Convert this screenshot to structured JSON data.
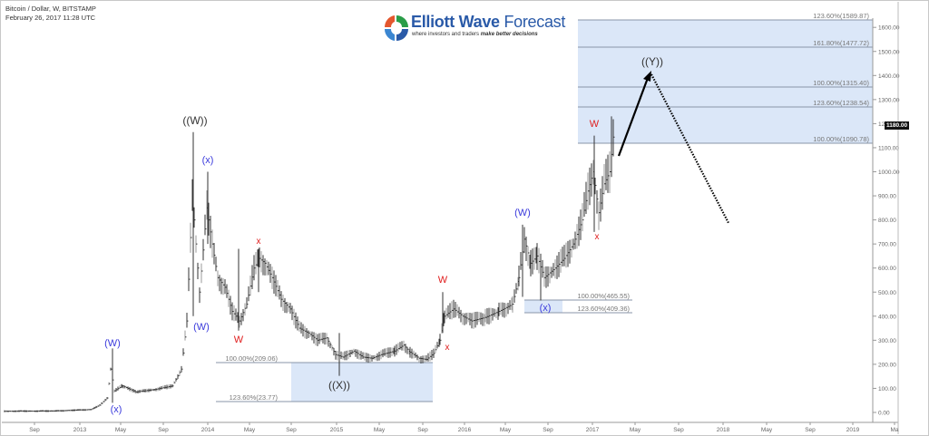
{
  "header": {
    "symbol": "Bitcoin / Dollar, W, BITSTAMP",
    "timestamp": "February 26, 2017 11:28 UTC"
  },
  "logo": {
    "brand_bold": "Elliott Wave",
    "brand_light": " Forecast",
    "tagline_plain": "where investors and traders ",
    "tagline_em": "make better decisions"
  },
  "price_tag": "1180.00",
  "colors": {
    "fib_zone": "#dbe7f8",
    "fib_line": "#8a96a8",
    "wave_black": "#333333",
    "wave_blue": "#3b3bdc",
    "wave_red": "#e02020",
    "bar": "#333333"
  },
  "chart_data": {
    "type": "ohlc",
    "title": "Bitcoin / Dollar, W, BITSTAMP",
    "subtitle": "February 26, 2017 11:28 UTC",
    "xlabel": "",
    "ylabel": "",
    "ylim": [
      0,
      1600
    ],
    "y_ticks": [
      "0.00",
      "100.00",
      "200.00",
      "300.00",
      "400.00",
      "500.00",
      "600.00",
      "700.00",
      "800.00",
      "900.00",
      "1000.00",
      "1100.00",
      "1200.00",
      "1300.00",
      "1400.00",
      "1500.00",
      "1600.00"
    ],
    "x_ticks": [
      "Sep",
      "2013",
      "May",
      "Sep",
      "2014",
      "May",
      "Sep",
      "2015",
      "May",
      "Sep",
      "2016",
      "May",
      "Sep",
      "2017",
      "May",
      "Sep",
      "2018",
      "May",
      "Sep",
      "2019",
      "Ma"
    ],
    "grid": false,
    "last_price": 1180.0,
    "approx_series": {
      "x": [
        "2012-07",
        "2012-10",
        "2013-01",
        "2013-03",
        "2013-04",
        "2013-05",
        "2013-07",
        "2013-09",
        "2013-11",
        "2013-12",
        "2014-01",
        "2014-02",
        "2014-04",
        "2014-06",
        "2014-09",
        "2014-12",
        "2015-01",
        "2015-03",
        "2015-06",
        "2015-08",
        "2015-10",
        "2015-11",
        "2016-01",
        "2016-04",
        "2016-06",
        "2016-08",
        "2016-10",
        "2016-12",
        "2017-01",
        "2017-02"
      ],
      "close": [
        8,
        11,
        14,
        47,
        120,
        115,
        80,
        125,
        400,
        1150,
        850,
        650,
        450,
        640,
        420,
        330,
        220,
        260,
        240,
        235,
        260,
        420,
        400,
        420,
        720,
        580,
        640,
        960,
        890,
        1180
      ]
    },
    "wave_labels": [
      {
        "label": "(W)",
        "color": "blue",
        "date": "2013-04",
        "price": 266
      },
      {
        "label": "(x)",
        "color": "blue",
        "date": "2013-04",
        "price": 50
      },
      {
        "label": "((W))",
        "color": "black",
        "date": "2013-12",
        "price": 1165
      },
      {
        "label": "(W)",
        "color": "blue",
        "date": "2013-12",
        "price": 380
      },
      {
        "label": "(x)",
        "color": "blue",
        "date": "2014-01",
        "price": 1000
      },
      {
        "label": "W",
        "color": "red",
        "date": "2014-04",
        "price": 340
      },
      {
        "label": "x",
        "color": "red",
        "date": "2014-06",
        "price": 680
      },
      {
        "label": "((X))",
        "color": "black",
        "date": "2015-01",
        "price": 152
      },
      {
        "label": "W",
        "color": "red",
        "date": "2015-11",
        "price": 500
      },
      {
        "label": "x",
        "color": "red",
        "date": "2015-11",
        "price": 300
      },
      {
        "label": "(W)",
        "color": "blue",
        "date": "2016-06",
        "price": 780
      },
      {
        "label": "(x)",
        "color": "blue",
        "date": "2016-08",
        "price": 465
      },
      {
        "label": "W",
        "color": "red",
        "date": "2017-01",
        "price": 1150
      },
      {
        "label": "x",
        "color": "red",
        "date": "2017-01",
        "price": 750
      },
      {
        "label": "((Y))",
        "color": "black",
        "date": "2017-05",
        "price": 1380
      }
    ],
    "fib_levels": [
      {
        "label": "100.00%(209.06)",
        "value": 209.06
      },
      {
        "label": "123.60%(23.77)",
        "value": 23.77
      },
      {
        "label": "100.00%(465.55)",
        "value": 465.55
      },
      {
        "label": "123.60%(409.36)",
        "value": 409.36
      },
      {
        "label": "100.00%(1090.78)",
        "value": 1090.78
      },
      {
        "label": "123.60%(1238.54)",
        "value": 1238.54
      },
      {
        "label": "100.00%(1315.40)",
        "value": 1315.4
      },
      {
        "label": "161.80%(1477.72)",
        "value": 1477.72
      },
      {
        "label": "123.60%(1589.87)",
        "value": 1589.87
      }
    ],
    "projection": [
      {
        "from": {
          "date": "2017-02",
          "price": 1040
        },
        "to": {
          "date": "2017-05",
          "price": 1380
        },
        "style": "solid-arrow"
      },
      {
        "from": {
          "date": "2017-05",
          "price": 1380
        },
        "to": {
          "date": "2017-12",
          "price": 780
        },
        "style": "dotted"
      }
    ],
    "annotations": [
      "Elliott Wave Forecast logo"
    ]
  }
}
